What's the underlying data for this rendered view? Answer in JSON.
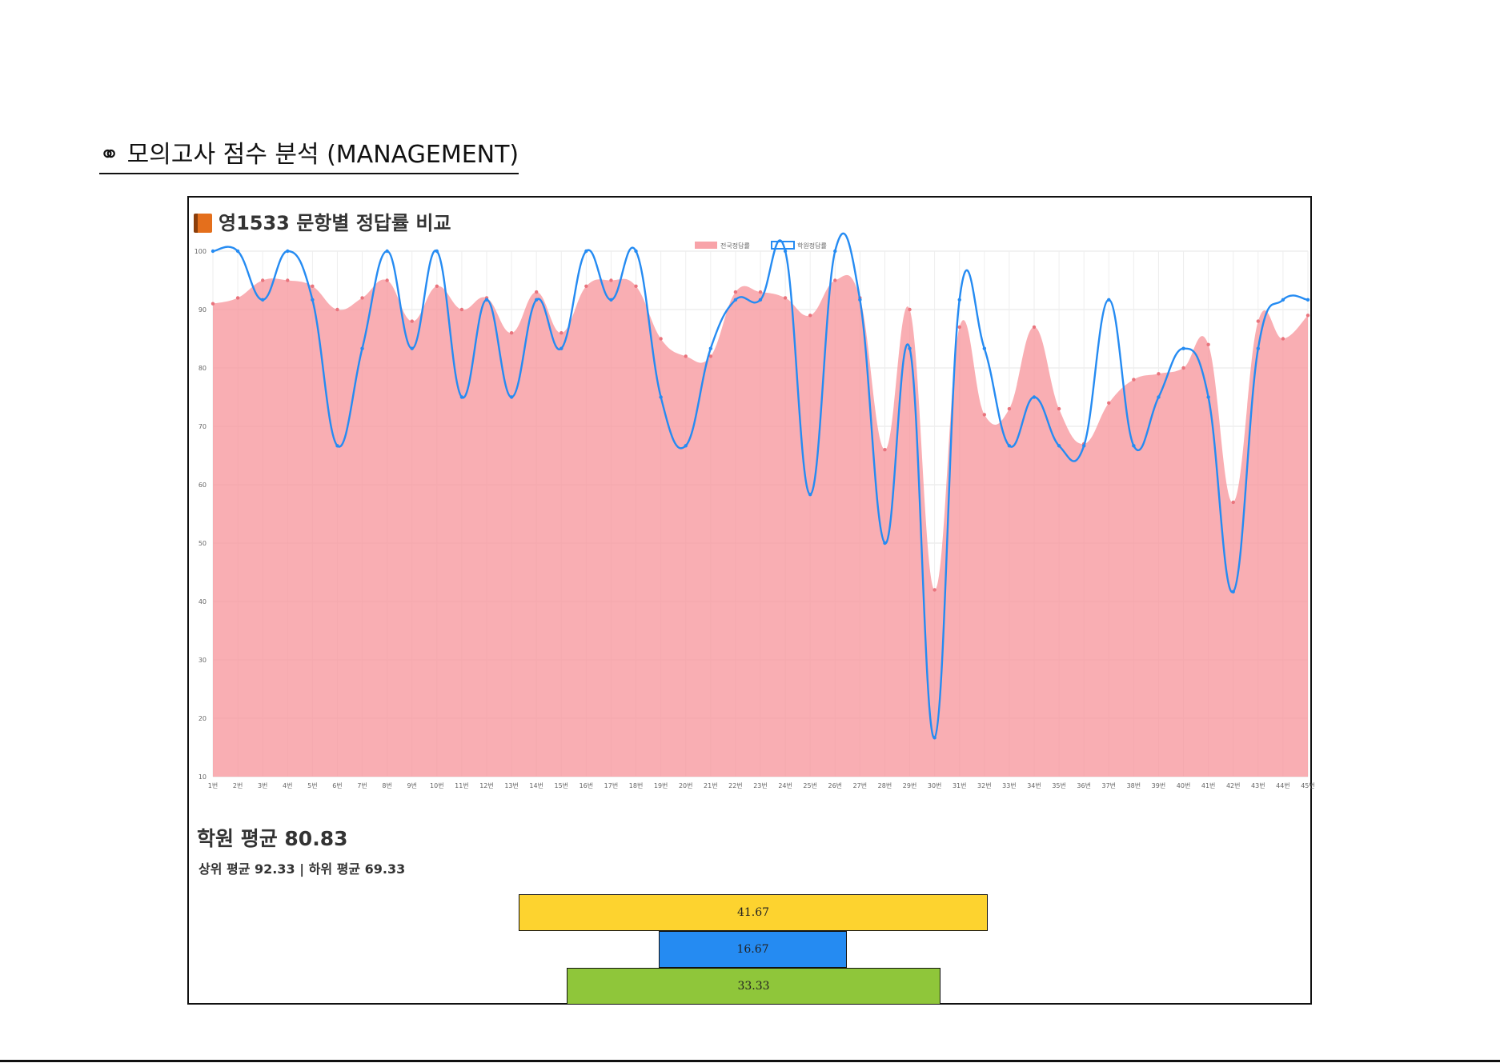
{
  "section": {
    "icon": "rings-icon",
    "title": "⚭ 모의고사 점수 분석 (MANAGEMENT)"
  },
  "chart": {
    "icon": "book-icon",
    "title": "영1533 문항별 정답률 비교"
  },
  "chart_data": {
    "type": "line",
    "title": "영1533 문항별 정답률 비교",
    "categories": [
      "1번",
      "2번",
      "3번",
      "4번",
      "5번",
      "6번",
      "7번",
      "8번",
      "9번",
      "10번",
      "11번",
      "12번",
      "13번",
      "14번",
      "15번",
      "16번",
      "17번",
      "18번",
      "19번",
      "20번",
      "21번",
      "22번",
      "23번",
      "24번",
      "25번",
      "26번",
      "27번",
      "28번",
      "29번",
      "30번",
      "31번",
      "32번",
      "33번",
      "34번",
      "35번",
      "36번",
      "37번",
      "38번",
      "39번",
      "40번",
      "41번",
      "42번",
      "43번",
      "44번",
      "45번"
    ],
    "ylim": [
      10,
      100
    ],
    "yticks": [
      10,
      20,
      30,
      40,
      50,
      60,
      70,
      80,
      90,
      100
    ],
    "grid": true,
    "legend_position": "top",
    "series": [
      {
        "name": "전국정답률",
        "kind": "area",
        "color": "#f7939a",
        "values": [
          91,
          92,
          95,
          95,
          94,
          90,
          92,
          95,
          88,
          94,
          90,
          92,
          86,
          93,
          86,
          94,
          95,
          94,
          85,
          82,
          82,
          93,
          93,
          92,
          89,
          95,
          92,
          66,
          90,
          42,
          87,
          72,
          73,
          87,
          73,
          67,
          74,
          78,
          79,
          80,
          84,
          57,
          88,
          85,
          89
        ]
      },
      {
        "name": "학원정답률",
        "kind": "line",
        "color": "#258bf2",
        "values": [
          100,
          100,
          91.67,
          100,
          91.67,
          66.67,
          83.33,
          100,
          83.33,
          100,
          75,
          91.67,
          75,
          91.67,
          83.33,
          100,
          91.67,
          100,
          75,
          66.67,
          83.33,
          91.67,
          91.67,
          100,
          58.33,
          100,
          91.67,
          50,
          83.33,
          16.67,
          91.67,
          83.33,
          66.67,
          75,
          66.67,
          66.67,
          91.67,
          66.67,
          75,
          83.33,
          75,
          41.67,
          83.33,
          91.67,
          91.67
        ]
      }
    ]
  },
  "summary": {
    "avg_label": "학원 평균 80.83",
    "sub_label": "상위 평균 92.33 | 하위 평균 69.33"
  },
  "bars": {
    "top": "41.67",
    "mid": "16.67",
    "bottom": "33.33",
    "colors": {
      "top": "#fdd32f",
      "mid": "#258bf2",
      "bottom": "#8fc63a"
    }
  }
}
